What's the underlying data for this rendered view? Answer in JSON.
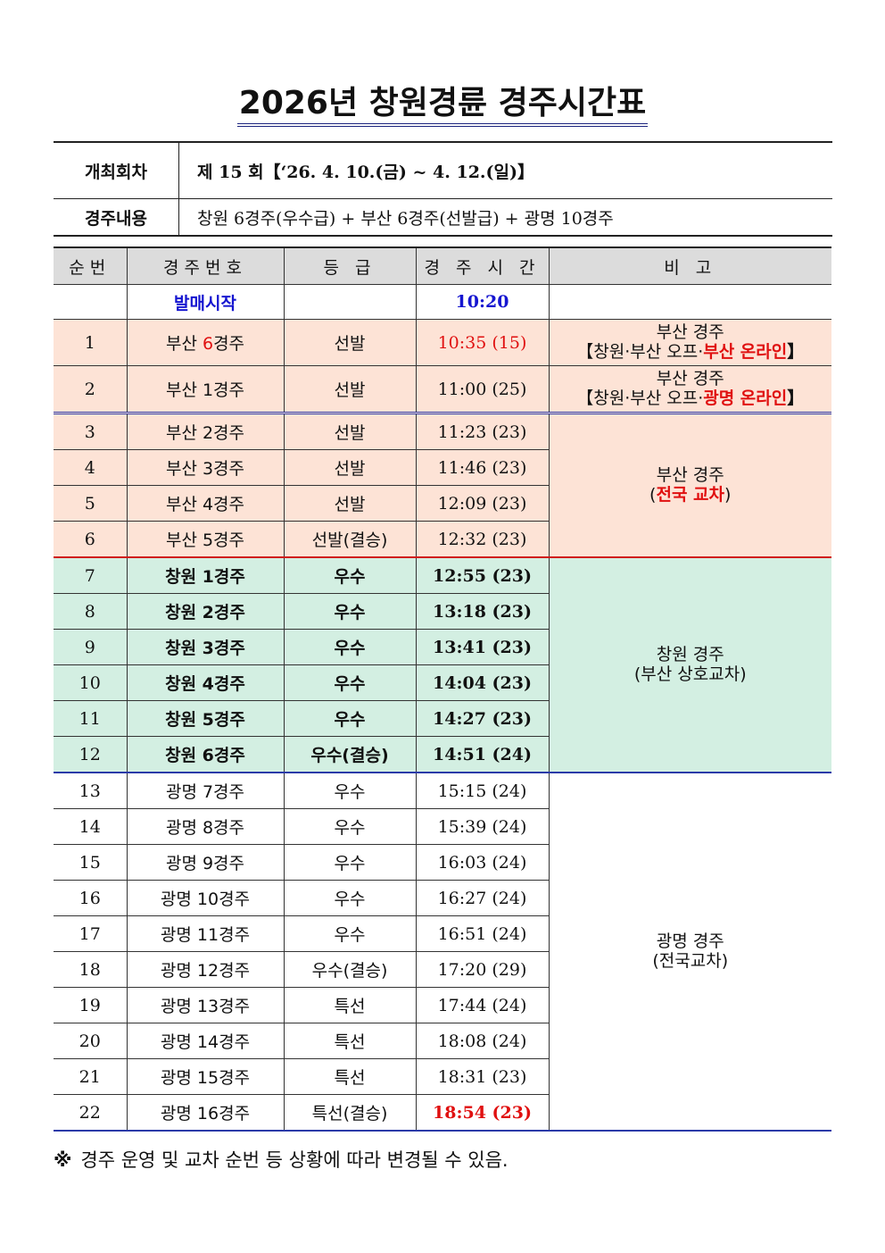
{
  "title": "2026년 창원경륜 경주시간표",
  "info": {
    "round_label": "개최회차",
    "round_value": "제 15 회【‘26. 4. 10.(금) ~ 4. 12.(일)】",
    "content_label": "경주내용",
    "content_value": "창원 6경주(우수급) + 부산 6경주(선발급) + 광명 10경주"
  },
  "columns": [
    "순번",
    "경주번호",
    "등 급",
    "경 주 시 간",
    "비 고"
  ],
  "start_row": {
    "label": "발매시작",
    "time": "10:20"
  },
  "rows": [
    {
      "no": "1",
      "race_prefix": "부산 ",
      "race_num": "6",
      "race_suffix": "경주",
      "grade": "선발",
      "time": "10:35 (15)"
    },
    {
      "no": "2",
      "race": "부산 1경주",
      "grade": "선발",
      "time": "11:00 (25)"
    },
    {
      "no": "3",
      "race": "부산 2경주",
      "grade": "선발",
      "time": "11:23 (23)"
    },
    {
      "no": "4",
      "race": "부산 3경주",
      "grade": "선발",
      "time": "11:46 (23)"
    },
    {
      "no": "5",
      "race": "부산 4경주",
      "grade": "선발",
      "time": "12:09 (23)"
    },
    {
      "no": "6",
      "race": "부산 5경주",
      "grade": "선발(결승)",
      "time": "12:32 (23)"
    },
    {
      "no": "7",
      "race": "창원 1경주",
      "grade": "우수",
      "time": "12:55 (23)"
    },
    {
      "no": "8",
      "race": "창원 2경주",
      "grade": "우수",
      "time": "13:18 (23)"
    },
    {
      "no": "9",
      "race": "창원 3경주",
      "grade": "우수",
      "time": "13:41 (23)"
    },
    {
      "no": "10",
      "race": "창원 4경주",
      "grade": "우수",
      "time": "14:04 (23)"
    },
    {
      "no": "11",
      "race": "창원 5경주",
      "grade": "우수",
      "time": "14:27 (23)"
    },
    {
      "no": "12",
      "race": "창원 6경주",
      "grade": "우수(결승)",
      "time": "14:51 (24)"
    },
    {
      "no": "13",
      "race": "광명 7경주",
      "grade": "우수",
      "time": "15:15 (24)"
    },
    {
      "no": "14",
      "race": "광명 8경주",
      "grade": "우수",
      "time": "15:39 (24)"
    },
    {
      "no": "15",
      "race": "광명 9경주",
      "grade": "우수",
      "time": "16:03 (24)"
    },
    {
      "no": "16",
      "race": "광명 10경주",
      "grade": "우수",
      "time": "16:27 (24)"
    },
    {
      "no": "17",
      "race": "광명 11경주",
      "grade": "우수",
      "time": "16:51 (24)"
    },
    {
      "no": "18",
      "race": "광명 12경주",
      "grade": "우수(결승)",
      "time": "17:20 (29)"
    },
    {
      "no": "19",
      "race": "광명 13경주",
      "grade": "특선",
      "time": "17:44 (24)"
    },
    {
      "no": "20",
      "race": "광명 14경주",
      "grade": "특선",
      "time": "18:08 (24)"
    },
    {
      "no": "21",
      "race": "광명 15경주",
      "grade": "특선",
      "time": "18:31 (23)"
    },
    {
      "no": "22",
      "race": "광명 16경주",
      "grade": "특선(결승)",
      "time": "18:54 (23)"
    }
  ],
  "notes": {
    "row1_l1": "부산 경주",
    "row1_l2_pre": "【창원·부산 오프·",
    "row1_l2_red": "부산 온라인",
    "row1_l2_post": "】",
    "row2_l1": "부산 경주",
    "row2_l2_pre": "【창원·부산 오프·",
    "row2_l2_red": "광명 온라인",
    "row2_l2_post": "】",
    "busan_l1": "부산 경주",
    "busan_l2_pre": "(",
    "busan_l2_red": "전국 교차",
    "busan_l2_post": ")",
    "changwon_l1": "창원 경주",
    "changwon_l2": "(부산 상호교차)",
    "gwangmyeong_l1": "광명 경주",
    "gwangmyeong_l2": "(전국교차)"
  },
  "footnote": {
    "mark": "※",
    "text": "경주 운영 및 교차 순번 등 상황에 따라 변경될 수 있음."
  },
  "colors": {
    "peach": "#fde3d6",
    "mint": "#d3efe2",
    "header_gray": "#dcdcdc",
    "red": "#e01010",
    "blue": "#1515d0"
  }
}
